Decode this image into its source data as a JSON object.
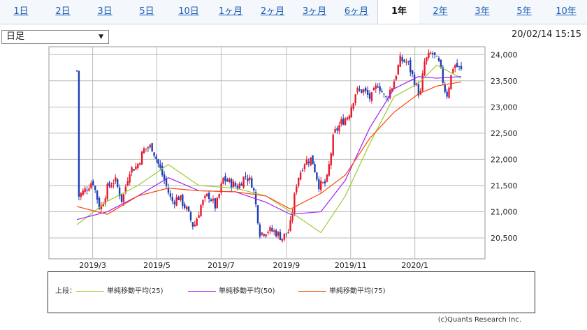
{
  "tabs": [
    "1日",
    "2日",
    "3日",
    "5日",
    "10日",
    "1ヶ月",
    "2ヶ月",
    "3ヶ月",
    "6ヶ月",
    "1年",
    "2年",
    "3年",
    "5年",
    "10年"
  ],
  "active_tab": "1年",
  "period_select": "日足",
  "timestamp": "20/02/14 15:15",
  "legend": {
    "prefix": "上段：",
    "items": [
      {
        "name": "単純移動平均(25)",
        "color": "#9acd32"
      },
      {
        "name": "単純移動平均(50)",
        "color": "#a020f0"
      },
      {
        "name": "単純移動平均(75)",
        "color": "#ff4500"
      }
    ]
  },
  "copyright": "(c)Quants Research Inc.",
  "chart_data": {
    "type": "candlestick",
    "x_ticks": [
      "2019/3",
      "2019/5",
      "2019/7",
      "2019/9",
      "2019/11",
      "2020/1"
    ],
    "y_ticks": [
      "20,500",
      "21,000",
      "21,500",
      "22,000",
      "22,500",
      "23,000",
      "23,500",
      "24,000"
    ],
    "ylim": [
      20100,
      24150
    ],
    "colors": {
      "up": "#e8192c",
      "down": "#1d3fb7",
      "grid": "#bbbbbb"
    },
    "close_series": [
      [
        "2019-02-15",
        21280
      ],
      [
        "2019-02-22",
        21420
      ],
      [
        "2019-03-01",
        21600
      ],
      [
        "2019-03-08",
        21040
      ],
      [
        "2019-03-15",
        21450
      ],
      [
        "2019-03-22",
        21620
      ],
      [
        "2019-03-29",
        21200
      ],
      [
        "2019-04-05",
        21800
      ],
      [
        "2019-04-12",
        21870
      ],
      [
        "2019-04-19",
        22200
      ],
      [
        "2019-04-26",
        22250
      ],
      [
        "2019-05-08",
        21600
      ],
      [
        "2019-05-15",
        21190
      ],
      [
        "2019-05-22",
        21280
      ],
      [
        "2019-05-29",
        21050
      ],
      [
        "2019-06-05",
        20700
      ],
      [
        "2019-06-12",
        21130
      ],
      [
        "2019-06-19",
        21330
      ],
      [
        "2019-06-26",
        21080
      ],
      [
        "2019-07-03",
        21630
      ],
      [
        "2019-07-10",
        21550
      ],
      [
        "2019-07-17",
        21470
      ],
      [
        "2019-07-24",
        21700
      ],
      [
        "2019-07-31",
        21520
      ],
      [
        "2019-08-07",
        20580
      ],
      [
        "2019-08-14",
        20650
      ],
      [
        "2019-08-21",
        20620
      ],
      [
        "2019-08-28",
        20500
      ],
      [
        "2019-09-04",
        20650
      ],
      [
        "2019-09-11",
        21600
      ],
      [
        "2019-09-18",
        21950
      ],
      [
        "2019-09-25",
        22020
      ],
      [
        "2019-10-02",
        21500
      ],
      [
        "2019-10-09",
        21550
      ],
      [
        "2019-10-16",
        22480
      ],
      [
        "2019-10-23",
        22700
      ],
      [
        "2019-10-30",
        22850
      ],
      [
        "2019-11-06",
        23300
      ],
      [
        "2019-11-13",
        23320
      ],
      [
        "2019-11-20",
        23150
      ],
      [
        "2019-11-27",
        23450
      ],
      [
        "2019-12-04",
        23140
      ],
      [
        "2019-12-11",
        23420
      ],
      [
        "2019-12-18",
        23900
      ],
      [
        "2019-12-25",
        23850
      ],
      [
        "2020-01-06",
        23200
      ],
      [
        "2020-01-10",
        23850
      ],
      [
        "2020-01-17",
        24040
      ],
      [
        "2020-01-24",
        23820
      ],
      [
        "2020-01-31",
        23200
      ],
      [
        "2020-02-07",
        23830
      ],
      [
        "2020-02-14",
        23690
      ]
    ],
    "series": [
      {
        "name": "単純移動平均(25)",
        "values": [
          [
            0,
            20750
          ],
          [
            10,
            21200
          ],
          [
            20,
            21500
          ],
          [
            30,
            21900
          ],
          [
            40,
            21500
          ],
          [
            52,
            21450
          ],
          [
            62,
            21300
          ],
          [
            70,
            21000
          ],
          [
            80,
            20600
          ],
          [
            88,
            21300
          ],
          [
            96,
            22300
          ],
          [
            104,
            23200
          ],
          [
            112,
            23450
          ],
          [
            118,
            23800
          ],
          [
            126,
            23550
          ]
        ]
      },
      {
        "name": "単純移動平均(50)",
        "values": [
          [
            0,
            20850
          ],
          [
            10,
            21000
          ],
          [
            20,
            21300
          ],
          [
            30,
            21650
          ],
          [
            40,
            21400
          ],
          [
            52,
            21380
          ],
          [
            62,
            21180
          ],
          [
            70,
            20950
          ],
          [
            80,
            21000
          ],
          [
            88,
            21600
          ],
          [
            96,
            22600
          ],
          [
            104,
            23350
          ],
          [
            112,
            23580
          ],
          [
            118,
            23550
          ],
          [
            126,
            23580
          ]
        ]
      },
      {
        "name": "単純移動平均(75)",
        "values": [
          [
            0,
            21100
          ],
          [
            10,
            20950
          ],
          [
            20,
            21300
          ],
          [
            30,
            21450
          ],
          [
            40,
            21400
          ],
          [
            52,
            21380
          ],
          [
            62,
            21300
          ],
          [
            70,
            21050
          ],
          [
            80,
            21350
          ],
          [
            88,
            21700
          ],
          [
            96,
            22400
          ],
          [
            104,
            22900
          ],
          [
            112,
            23250
          ],
          [
            118,
            23400
          ],
          [
            126,
            23480
          ]
        ]
      }
    ]
  }
}
